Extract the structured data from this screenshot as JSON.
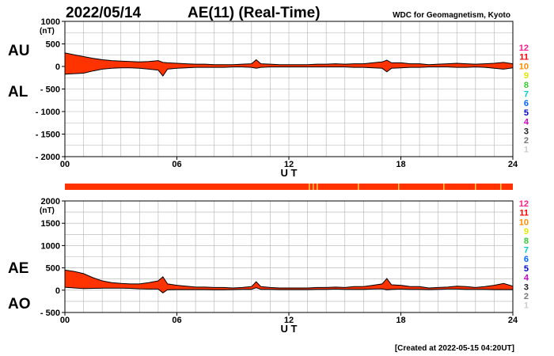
{
  "header": {
    "date": "2022/05/14",
    "title": "AE(11) (Real-Time)",
    "org": "WDC for Geomagnetism, Kyoto"
  },
  "footer": {
    "created": "[Created at 2022-05-15 04:20UT]"
  },
  "colors": {
    "fill": "#ff3300",
    "line": "#000000",
    "strip": "#ff3300",
    "strip_highlight": "#ffcc44"
  },
  "legend": {
    "items": [
      {
        "label": "12",
        "color": "#ff1a8c"
      },
      {
        "label": "11",
        "color": "#ff0000"
      },
      {
        "label": "10",
        "color": "#ff8c00"
      },
      {
        "label": "9",
        "color": "#e6e600"
      },
      {
        "label": "8",
        "color": "#33cc33"
      },
      {
        "label": "7",
        "color": "#00cccc"
      },
      {
        "label": "6",
        "color": "#0066ff"
      },
      {
        "label": "5",
        "color": "#0000cc"
      },
      {
        "label": "4",
        "color": "#cc00cc"
      },
      {
        "label": "3",
        "color": "#222222"
      },
      {
        "label": "2",
        "color": "#777777"
      },
      {
        "label": "1",
        "color": "#cccccc"
      }
    ]
  },
  "chart_data": [
    {
      "type": "area",
      "name": "AU-AL",
      "upper_label": "AU",
      "lower_label": "AL",
      "unit": "(nT)",
      "xlabel": "U T",
      "xlim": [
        0,
        24
      ],
      "ylim": [
        -2000,
        1000
      ],
      "yticks": [
        1000,
        500,
        0,
        -500,
        -1000,
        -1500,
        -2000
      ],
      "ytick_labels": [
        "1000",
        "500",
        "0",
        "- 500",
        "- 1000",
        "- 1500",
        "- 2000"
      ],
      "xticks": [
        0,
        6,
        12,
        18,
        24
      ],
      "xtick_labels": [
        "00",
        "06",
        "12",
        "18",
        "24"
      ],
      "grid": true,
      "x": [
        0,
        0.5,
        1,
        1.5,
        2,
        2.5,
        3,
        3.5,
        4,
        4.5,
        5,
        5.25,
        5.5,
        6,
        6.5,
        7,
        7.5,
        8,
        8.5,
        9,
        9.5,
        10,
        10.25,
        10.5,
        11,
        11.5,
        12,
        12.5,
        13,
        13.5,
        14,
        14.5,
        15,
        15.5,
        16,
        16.5,
        17,
        17.25,
        17.5,
        18,
        18.5,
        19,
        19.5,
        20,
        20.5,
        21,
        21.5,
        22,
        22.5,
        23,
        23.5,
        24
      ],
      "series": [
        {
          "name": "AU",
          "values": [
            300,
            260,
            220,
            180,
            150,
            130,
            120,
            110,
            100,
            110,
            130,
            90,
            80,
            70,
            60,
            50,
            50,
            40,
            40,
            40,
            50,
            60,
            150,
            60,
            50,
            40,
            40,
            40,
            40,
            50,
            50,
            60,
            50,
            60,
            60,
            80,
            100,
            140,
            80,
            80,
            60,
            60,
            40,
            50,
            60,
            70,
            60,
            50,
            60,
            70,
            90,
            60
          ]
        },
        {
          "name": "AL",
          "values": [
            -170,
            -160,
            -150,
            -100,
            -60,
            -40,
            -30,
            -30,
            -40,
            -60,
            -80,
            -210,
            -60,
            -40,
            -30,
            -20,
            -20,
            -20,
            -20,
            -10,
            -10,
            -20,
            -40,
            -20,
            -10,
            -10,
            -10,
            -10,
            -10,
            -10,
            -10,
            -10,
            -10,
            -20,
            -20,
            -30,
            -40,
            -120,
            -40,
            -30,
            -20,
            -20,
            -10,
            -10,
            -10,
            -20,
            -20,
            -10,
            -20,
            -40,
            -60,
            -30
          ]
        }
      ]
    },
    {
      "type": "area",
      "name": "AE-AO",
      "upper_label": "AE",
      "lower_label": "AO",
      "unit": "(nT)",
      "xlabel": "U T",
      "xlim": [
        0,
        24
      ],
      "ylim": [
        -500,
        2000
      ],
      "yticks": [
        2000,
        1500,
        1000,
        500,
        0,
        -500
      ],
      "ytick_labels": [
        "2000",
        "1500",
        "1000",
        "500",
        "0",
        "- 500"
      ],
      "xticks": [
        0,
        6,
        12,
        18,
        24
      ],
      "xtick_labels": [
        "00",
        "06",
        "12",
        "18",
        "24"
      ],
      "grid": true,
      "x": [
        0,
        0.5,
        1,
        1.5,
        2,
        2.5,
        3,
        3.5,
        4,
        4.5,
        5,
        5.25,
        5.5,
        6,
        6.5,
        7,
        7.5,
        8,
        8.5,
        9,
        9.5,
        10,
        10.25,
        10.5,
        11,
        11.5,
        12,
        12.5,
        13,
        13.5,
        14,
        14.5,
        15,
        15.5,
        16,
        16.5,
        17,
        17.25,
        17.5,
        18,
        18.5,
        19,
        19.5,
        20,
        20.5,
        21,
        21.5,
        22,
        22.5,
        23,
        23.5,
        24
      ],
      "series": [
        {
          "name": "AE",
          "values": [
            450,
            420,
            370,
            280,
            210,
            170,
            150,
            140,
            140,
            170,
            210,
            300,
            140,
            110,
            90,
            70,
            70,
            60,
            60,
            50,
            60,
            80,
            190,
            80,
            60,
            50,
            50,
            50,
            50,
            60,
            60,
            70,
            60,
            80,
            80,
            110,
            140,
            260,
            120,
            110,
            80,
            80,
            50,
            60,
            70,
            90,
            80,
            60,
            80,
            110,
            150,
            90
          ]
        },
        {
          "name": "AO",
          "values": [
            65,
            50,
            35,
            40,
            45,
            45,
            45,
            40,
            30,
            25,
            25,
            -60,
            10,
            15,
            15,
            15,
            15,
            10,
            10,
            15,
            20,
            20,
            55,
            20,
            20,
            15,
            15,
            15,
            15,
            20,
            20,
            25,
            20,
            20,
            20,
            25,
            30,
            10,
            20,
            25,
            20,
            20,
            15,
            20,
            25,
            25,
            20,
            20,
            20,
            15,
            15,
            15
          ]
        }
      ]
    }
  ]
}
